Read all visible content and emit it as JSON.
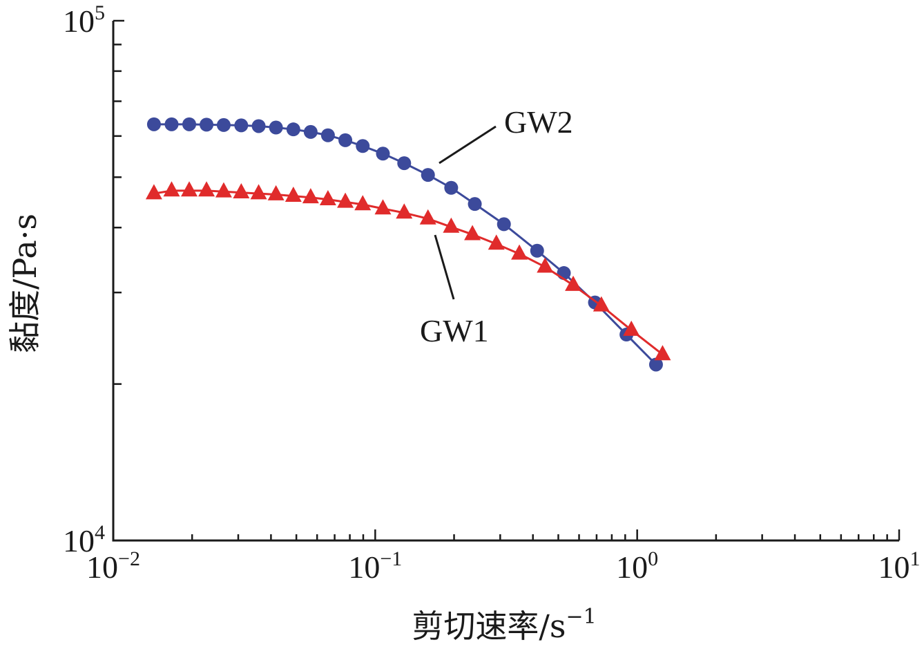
{
  "chart_data": {
    "type": "line",
    "xlabel": "剪切速率/s",
    "xlabel_sup": "−1",
    "ylabel": "黏度/Pa·s",
    "x_scale": "log",
    "y_scale": "log",
    "xlim": [
      0.01,
      10
    ],
    "ylim": [
      10000,
      100000
    ],
    "x_ticks": [
      {
        "value": 0.01,
        "base": "10",
        "exp": "−2"
      },
      {
        "value": 0.1,
        "base": "10",
        "exp": "−1"
      },
      {
        "value": 1,
        "base": "10",
        "exp": "0"
      },
      {
        "value": 10,
        "base": "10",
        "exp": "1"
      }
    ],
    "y_ticks": [
      {
        "value": 10000,
        "base": "10",
        "exp": "4"
      },
      {
        "value": 100000,
        "base": "10",
        "exp": "5"
      }
    ],
    "grid": false,
    "series": [
      {
        "name": "GW2",
        "color": "#3c4a9b",
        "marker": "circle",
        "x": [
          0.0143,
          0.0167,
          0.0195,
          0.0227,
          0.0264,
          0.0308,
          0.0359,
          0.0418,
          0.0487,
          0.0567,
          0.066,
          0.0769,
          0.0896,
          0.107,
          0.129,
          0.159,
          0.195,
          0.24,
          0.31,
          0.415,
          0.525,
          0.69,
          0.91,
          1.18
        ],
        "y": [
          63200,
          63200,
          63200,
          63100,
          63000,
          62900,
          62700,
          62300,
          61800,
          61100,
          60200,
          58900,
          57400,
          55500,
          53200,
          50500,
          47700,
          44400,
          40600,
          36100,
          32700,
          28700,
          24900,
          21800
        ]
      },
      {
        "name": "GW1",
        "color": "#e02b2b",
        "marker": "triangle",
        "x": [
          0.0143,
          0.0167,
          0.0195,
          0.0227,
          0.0264,
          0.0308,
          0.0359,
          0.0418,
          0.0487,
          0.0567,
          0.066,
          0.0769,
          0.0896,
          0.107,
          0.129,
          0.159,
          0.195,
          0.235,
          0.29,
          0.355,
          0.445,
          0.57,
          0.73,
          0.95,
          1.25
        ],
        "y": [
          46500,
          47100,
          47100,
          47100,
          46900,
          46700,
          46500,
          46300,
          46000,
          45700,
          45300,
          44800,
          44300,
          43500,
          42700,
          41600,
          40100,
          38800,
          37200,
          35600,
          33600,
          31000,
          28300,
          25400,
          22800
        ]
      }
    ],
    "annotations": [
      {
        "text": "GW2",
        "series": "GW2"
      },
      {
        "text": "GW1",
        "series": "GW1"
      }
    ]
  }
}
